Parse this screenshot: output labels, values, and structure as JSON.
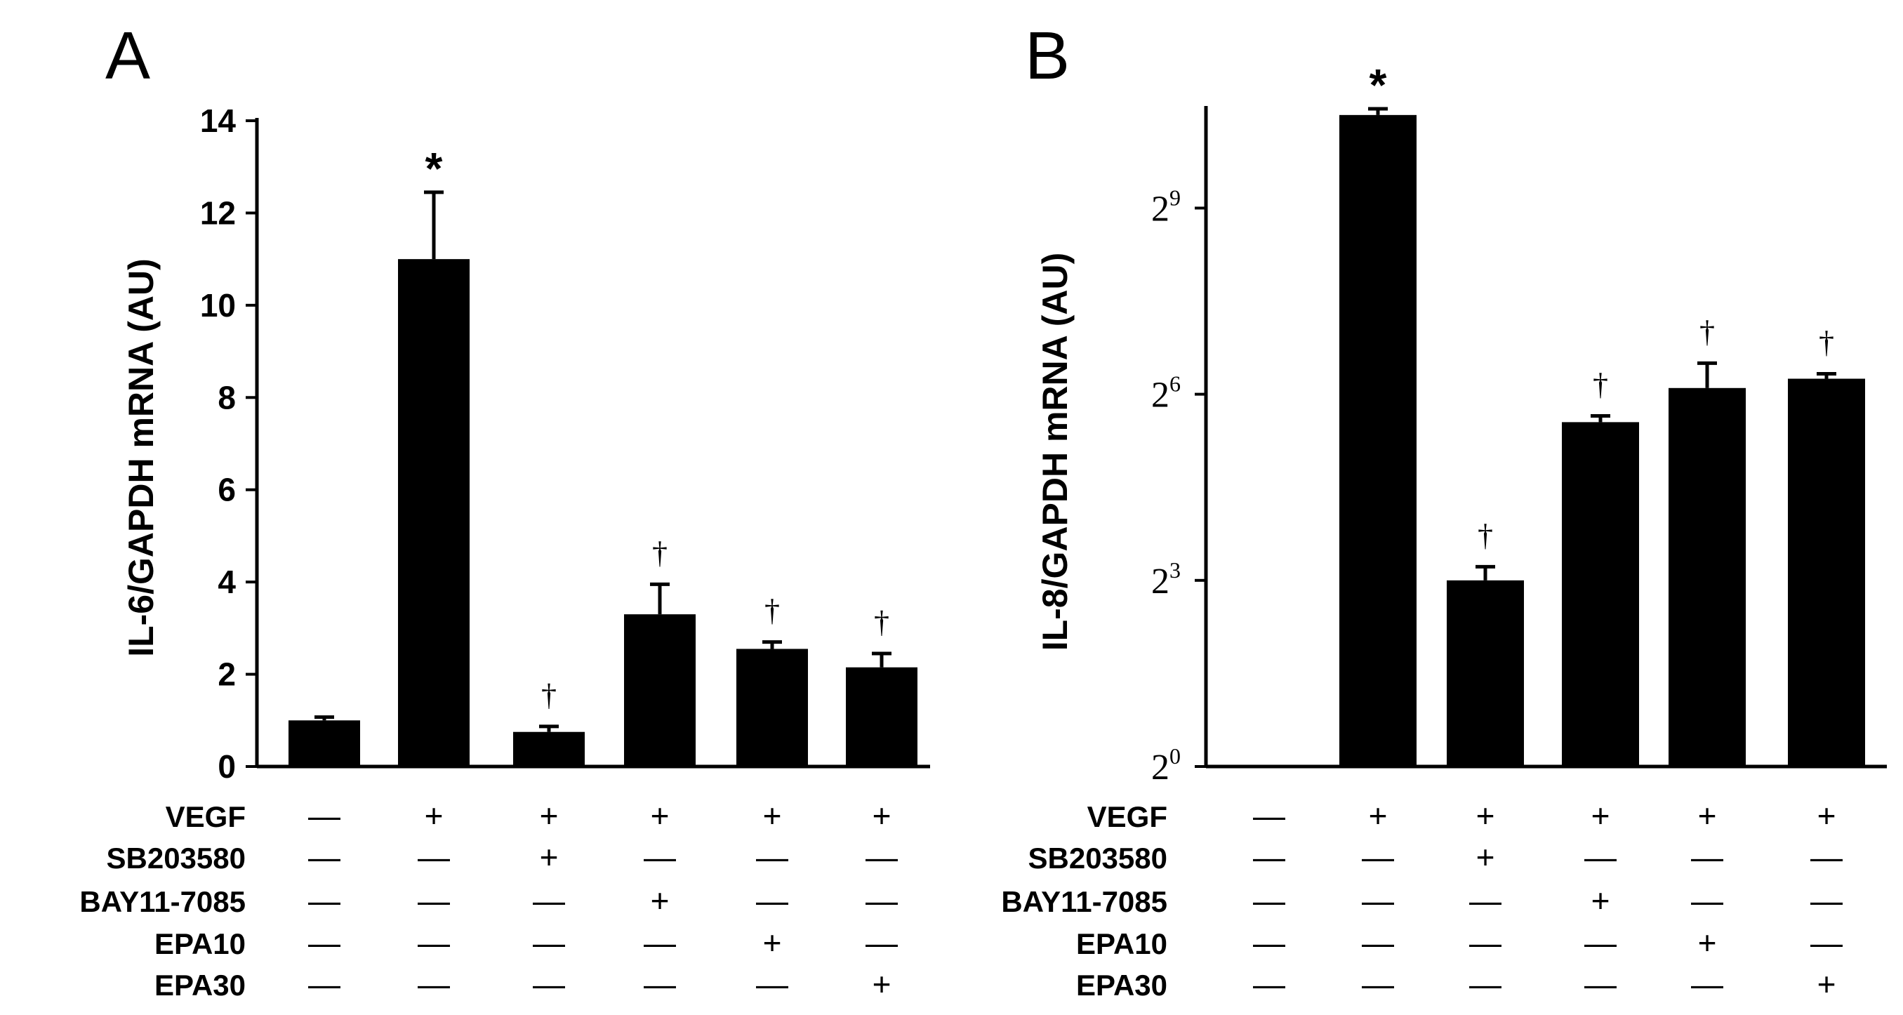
{
  "chart_data": [
    {
      "panel": "A",
      "type": "bar",
      "ylabel": "IL-6/GAPDH mRNA (AU)",
      "yscale": "linear",
      "ylim": [
        0,
        14
      ],
      "yticks": [
        0,
        2,
        4,
        6,
        8,
        10,
        12,
        14
      ],
      "ytick_labels": [
        "0",
        "2",
        "4",
        "6",
        "8",
        "10",
        "12",
        "14"
      ],
      "values": [
        1.0,
        11.0,
        0.75,
        3.3,
        2.55,
        2.15
      ],
      "errors": [
        0.07,
        1.45,
        0.12,
        0.65,
        0.15,
        0.3
      ],
      "annotations": [
        "",
        "*",
        "†",
        "†",
        "†",
        "†"
      ]
    },
    {
      "panel": "B",
      "type": "bar",
      "ylabel": "IL-8/GAPDH mRNA (AU)",
      "yscale": "log2",
      "ylim_exponent": [
        0,
        10.6
      ],
      "yticks_exponent": [
        0,
        3,
        6,
        9
      ],
      "ytick_base": "2",
      "ytick_exponents": [
        "0",
        "3",
        "6",
        "9"
      ],
      "values_exponent": [
        0,
        10.5,
        3.0,
        5.55,
        6.1,
        6.25
      ],
      "errors_exponent": [
        0,
        0.1,
        0.22,
        0.1,
        0.4,
        0.08
      ],
      "annotations": [
        "",
        "*",
        "†",
        "†",
        "†",
        "†"
      ]
    }
  ],
  "treatments": {
    "rows": [
      {
        "label": "VEGF",
        "signs": [
          "—",
          "+",
          "+",
          "+",
          "+",
          "+"
        ]
      },
      {
        "label": "SB203580",
        "signs": [
          "—",
          "—",
          "+",
          "—",
          "—",
          "—"
        ]
      },
      {
        "label": "BAY11-7085",
        "signs": [
          "—",
          "—",
          "—",
          "+",
          "—",
          "—"
        ]
      },
      {
        "label": "EPA10",
        "signs": [
          "—",
          "—",
          "—",
          "—",
          "+",
          "—"
        ]
      },
      {
        "label": "EPA30",
        "signs": [
          "—",
          "—",
          "—",
          "—",
          "—",
          "+"
        ]
      }
    ]
  }
}
